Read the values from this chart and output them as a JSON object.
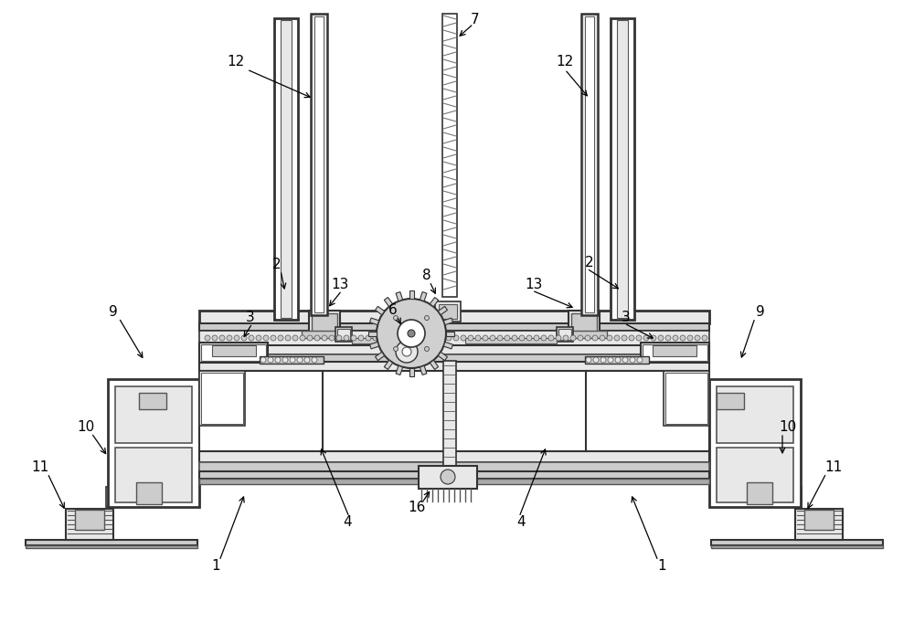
{
  "bg_color": "#ffffff",
  "ec": "#333333",
  "lc": "#444444",
  "white": "#ffffff",
  "light_gray": "#e8e8e8",
  "mid_gray": "#cccccc",
  "dark_gray": "#888888"
}
